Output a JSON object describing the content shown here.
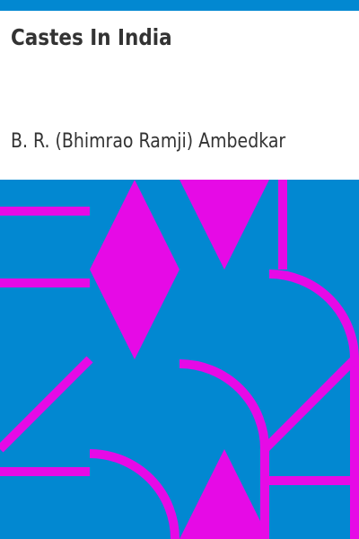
{
  "book": {
    "title": "Castes In India",
    "author": "B. R. (Bhimrao Ramji) Ambedkar"
  },
  "colors": {
    "accent_bar": "#0288d1",
    "pattern_background": "#0288d1",
    "pattern_shapes": "#e60ae6",
    "text": "#333333",
    "page": "#ffffff"
  }
}
